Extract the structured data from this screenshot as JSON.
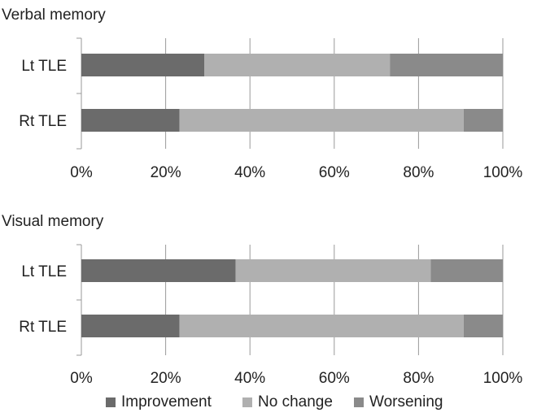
{
  "chart_data": [
    {
      "type": "bar",
      "orientation": "horizontal",
      "stacked": "percent",
      "title": "Verbal memory",
      "categories": [
        "Lt TLE",
        "Rt TLE"
      ],
      "series": [
        {
          "name": "Improvement",
          "values": [
            29.2,
            23.3
          ]
        },
        {
          "name": "No change",
          "values": [
            44.0,
            67.4
          ]
        },
        {
          "name": "Worsening",
          "values": [
            26.8,
            9.3
          ]
        }
      ],
      "xlim": [
        0,
        100
      ],
      "xticks": [
        "0%",
        "20%",
        "40%",
        "60%",
        "80%",
        "100%"
      ],
      "grid": true
    },
    {
      "type": "bar",
      "orientation": "horizontal",
      "stacked": "percent",
      "title": "Visual memory",
      "categories": [
        "Lt TLE",
        "Rt TLE"
      ],
      "series": [
        {
          "name": "Improvement",
          "values": [
            36.6,
            23.3
          ]
        },
        {
          "name": "No change",
          "values": [
            46.3,
            67.4
          ]
        },
        {
          "name": "Worsening",
          "values": [
            17.1,
            9.3
          ]
        }
      ],
      "xlim": [
        0,
        100
      ],
      "xticks": [
        "0%",
        "20%",
        "40%",
        "60%",
        "80%",
        "100%"
      ],
      "grid": true
    }
  ],
  "legend": {
    "placement": "bottom",
    "items": [
      {
        "name": "Improvement",
        "color": "#6b6b6b"
      },
      {
        "name": "No change",
        "color": "#b0b0b0"
      },
      {
        "name": "Worsening",
        "color": "#8a8a8a"
      }
    ]
  },
  "colors": {
    "improvement": "#6b6b6b",
    "no_change": "#b0b0b0",
    "worsening": "#8a8a8a",
    "grid": "#9a9a9a",
    "axis": "#9a9a9a"
  }
}
